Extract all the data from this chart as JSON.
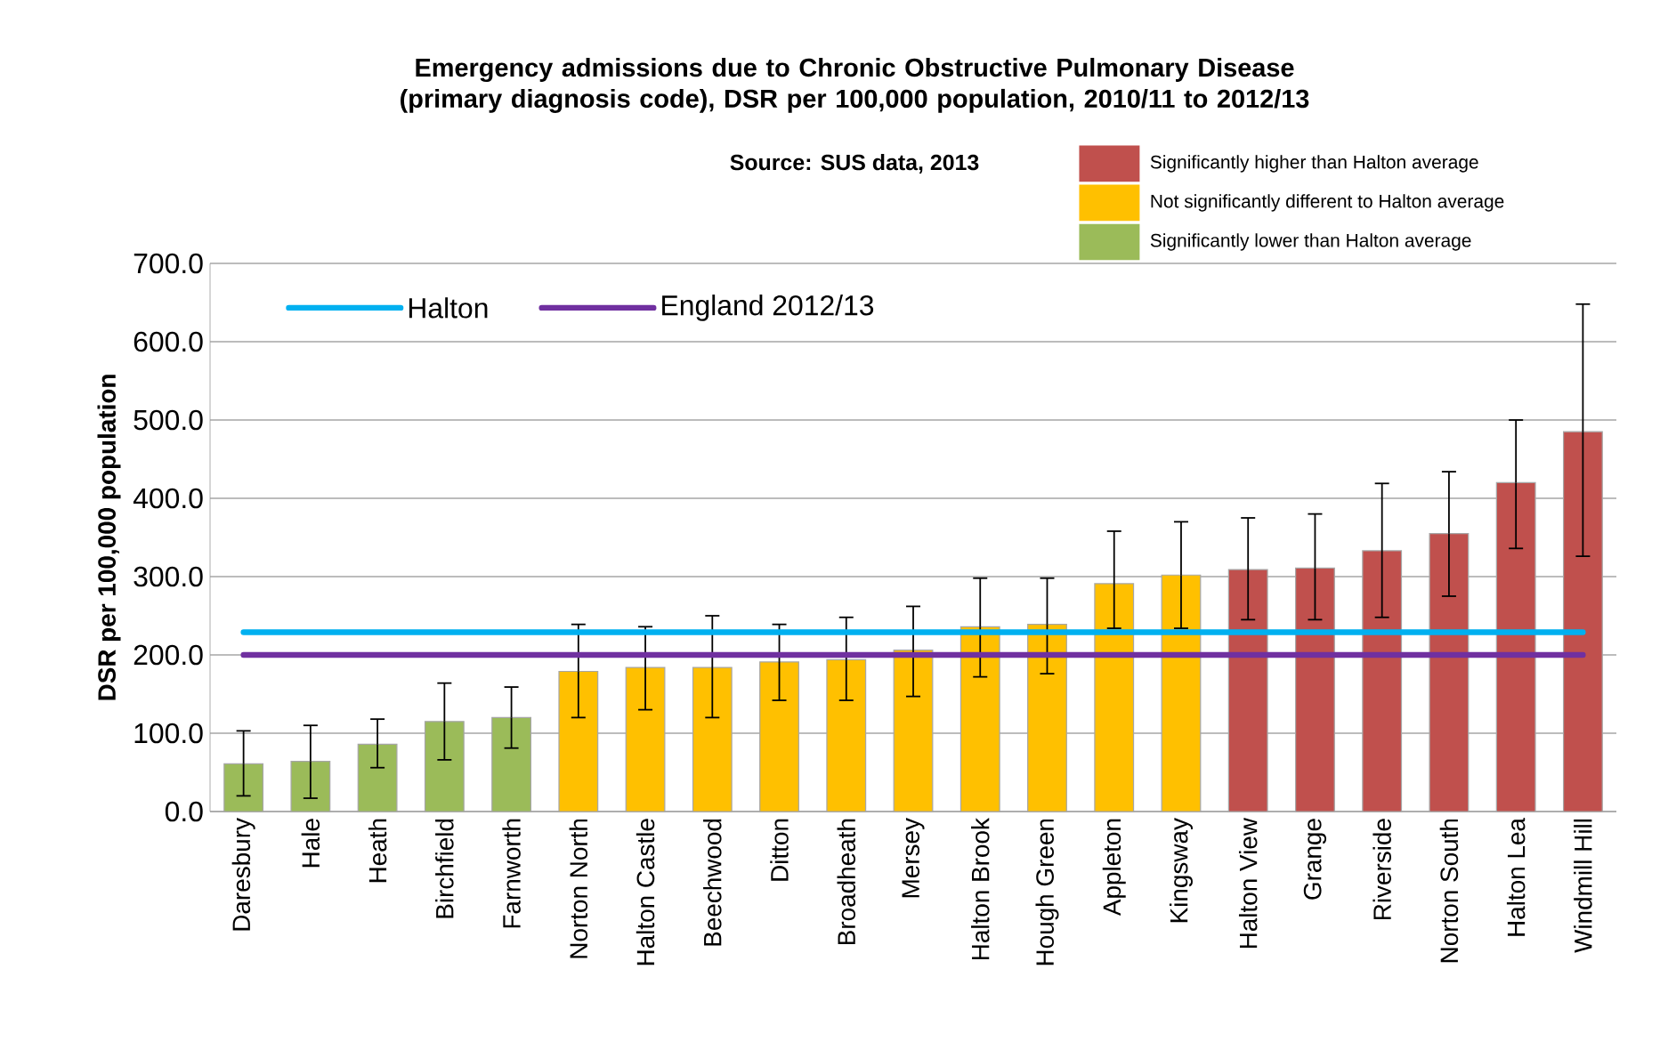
{
  "chart_data": {
    "type": "bar",
    "title": "Emergency admissions due to Chronic Obstructive Pulmonary Disease (primary diagnosis code), DSR per 100,000 population, 2010/11 to 2012/13",
    "subtitle": "Source: SUS data, 2013",
    "ylabel": "DSR per 100,000 population",
    "categories": [
      "Daresbury",
      "Hale",
      "Heath",
      "Birchfield",
      "Farnworth",
      "Norton North",
      "Halton Castle",
      "Beechwood",
      "Ditton",
      "Broadheath",
      "Mersey",
      "Halton Brook",
      "Hough Green",
      "Appleton",
      "Kingsway",
      "Halton View",
      "Grange",
      "Riverside",
      "Norton South",
      "Halton Lea",
      "Windmill Hill"
    ],
    "series": [
      {
        "name": "Significantly higher than Halton average",
        "color": "#c0504d",
        "values": [
          null,
          null,
          null,
          null,
          null,
          null,
          null,
          null,
          null,
          null,
          null,
          null,
          null,
          null,
          null,
          309,
          311,
          333,
          355,
          420,
          485
        ],
        "errors": [
          null,
          null,
          null,
          null,
          null,
          null,
          null,
          null,
          null,
          null,
          null,
          null,
          null,
          null,
          null,
          [
            245,
            375
          ],
          [
            245,
            380
          ],
          [
            248,
            419
          ],
          [
            275,
            434
          ],
          [
            336,
            500
          ],
          [
            326,
            648
          ]
        ]
      },
      {
        "name": "Not significantly different to Halton average",
        "color": "#ffc000",
        "values": [
          null,
          null,
          null,
          null,
          null,
          179,
          184,
          184,
          191,
          194,
          206,
          236,
          239,
          291,
          302,
          null,
          null,
          null,
          null,
          null,
          null
        ],
        "errors": [
          null,
          null,
          null,
          null,
          null,
          [
            120,
            239
          ],
          [
            130,
            236
          ],
          [
            120,
            250
          ],
          [
            142,
            239
          ],
          [
            142,
            248
          ],
          [
            147,
            262
          ],
          [
            172,
            298
          ],
          [
            176,
            298
          ],
          [
            234,
            358
          ],
          [
            234,
            370
          ],
          null,
          null,
          null,
          null,
          null,
          null
        ]
      },
      {
        "name": "Significantly lower than Halton average",
        "color": "#9bbb59",
        "values": [
          61,
          64,
          86,
          115,
          120,
          null,
          null,
          null,
          null,
          null,
          null,
          null,
          null,
          null,
          null,
          null,
          null,
          null,
          null,
          null,
          null
        ],
        "errors": [
          [
            20,
            103
          ],
          [
            17,
            110
          ],
          [
            56,
            118
          ],
          [
            66,
            164
          ],
          [
            81,
            159
          ],
          null,
          null,
          null,
          null,
          null,
          null,
          null,
          null,
          null,
          null,
          null,
          null,
          null,
          null,
          null,
          null
        ]
      },
      {
        "name": "Halton",
        "type": "line",
        "color": "#00b0f0",
        "values": [
          229,
          229,
          229,
          229,
          229,
          229,
          229,
          229,
          229,
          229,
          229,
          229,
          229,
          229,
          229,
          229,
          229,
          229,
          229,
          229,
          229
        ]
      },
      {
        "name": "England 2012/13",
        "type": "line",
        "color": "#7030a0",
        "values": [
          200,
          200,
          200,
          200,
          200,
          200,
          200,
          200,
          200,
          200,
          200,
          200,
          200,
          200,
          200,
          200,
          200,
          200,
          200,
          200,
          200
        ]
      }
    ],
    "ylim": [
      0,
      700
    ],
    "yticks": [
      {
        "value": 0,
        "label": "0.0"
      },
      {
        "value": 100,
        "label": "100.0"
      },
      {
        "value": 200,
        "label": "200.0"
      },
      {
        "value": 300,
        "label": "300.0"
      },
      {
        "value": 400,
        "label": "400.0"
      },
      {
        "value": 500,
        "label": "500.0"
      },
      {
        "value": 600,
        "label": "600.0"
      },
      {
        "value": 700,
        "label": "700.0"
      }
    ],
    "grid": "y",
    "legend": "top"
  }
}
